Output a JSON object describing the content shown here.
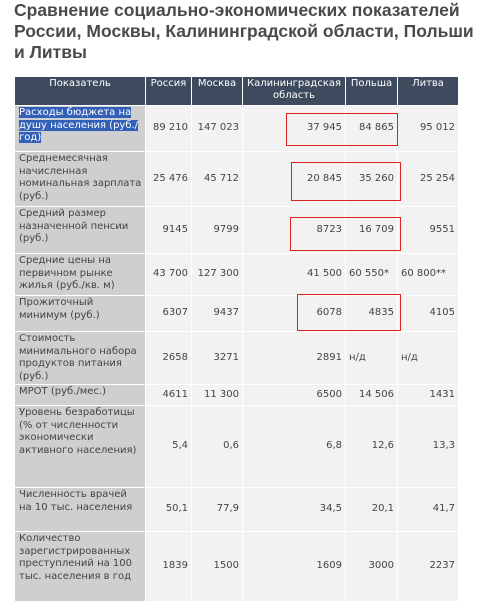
{
  "header": {
    "title": "Сравнение социально-экономических показателей России, Москвы, Калининградской области, Польши и Литвы"
  },
  "table": {
    "columns": [
      "Показатель",
      "Россия",
      "Москва",
      "Калининградская область",
      "Польша",
      "Литва"
    ],
    "rows": [
      [
        "Расходы бюджета на душу населения (руб./год)",
        "89 210",
        "147 023",
        "37 945",
        "84 865",
        "95 012"
      ],
      [
        "Среднемесячная начисленная номинальная зарплата (руб.)",
        "25 476",
        "45 712",
        "20 845",
        "35 260",
        "25 254"
      ],
      [
        "Средний размер назначенной пенсии (руб.)",
        "9145",
        "9799",
        "8723",
        "16 709",
        "9551"
      ],
      [
        "Средние цены на первичном рынке жилья (руб./кв. м)",
        "43 700",
        "127 300",
        "41 500",
        "60 550*",
        "60 800**"
      ],
      [
        "Прожиточный минимум (руб.)",
        "6307",
        "9437",
        "6078",
        "4835",
        "4105"
      ],
      [
        "Стоимость минимального набора продуктов питания (руб.)",
        "2658",
        "3271",
        "2891",
        "н/д",
        "н/д"
      ],
      [
        "МРОТ (руб./мес.)",
        "4611",
        "11 300",
        "6500",
        "14 506",
        "1431"
      ],
      [
        "Уровень безработицы (% от численности экономически активного населения)",
        "5,4",
        "0,6",
        "6,8",
        "12,6",
        "13,3"
      ],
      [
        "Численность врачей на 10 тыс. населения",
        "50,1",
        "77,9",
        "34,5",
        "20,1",
        "41,7"
      ],
      [
        "Количество зарегистрированных преступлений на 100 тыс. населения в год",
        "1839",
        "1500",
        "1609",
        "3000",
        "2237"
      ]
    ]
  }
}
